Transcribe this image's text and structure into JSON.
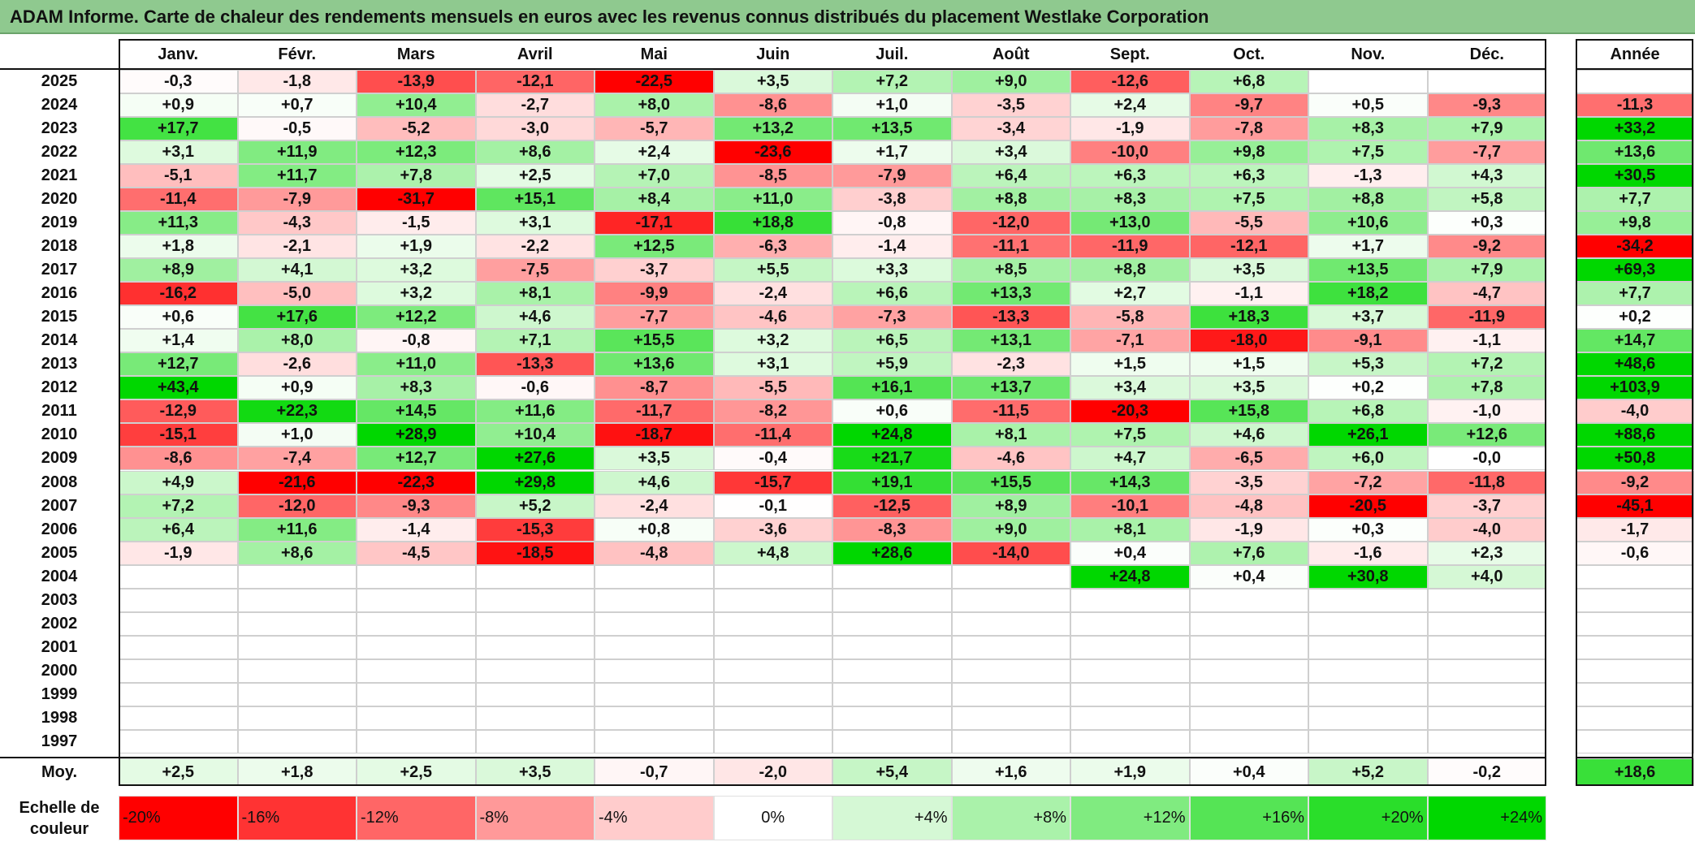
{
  "title": "ADAM Informe. Carte de chaleur des rendements mensuels en euros avec les revenus connus distribués du placement Westlake Corporation",
  "months": [
    "Janv.",
    "Févr.",
    "Mars",
    "Avril",
    "Mai",
    "Juin",
    "Juil.",
    "Août",
    "Sept.",
    "Oct.",
    "Nov.",
    "Déc."
  ],
  "annual_header": "Année",
  "average_label": "Moy.",
  "scale_label": "Echelle de couleur",
  "colors": {
    "negative": "#ff0000",
    "neutral": "#ffffff",
    "positive": "#00ff00",
    "title_bg": "#8fc98f"
  },
  "chart_data": {
    "type": "heatmap",
    "title": "ADAM Informe. Carte de chaleur des rendements mensuels en euros avec les revenus connus distribués du placement Westlake Corporation",
    "years": [
      2025,
      2024,
      2023,
      2022,
      2021,
      2020,
      2019,
      2018,
      2017,
      2016,
      2015,
      2014,
      2013,
      2012,
      2011,
      2010,
      2009,
      2008,
      2007,
      2006,
      2005,
      2004,
      2003,
      2002,
      2001,
      2000,
      1999,
      1998,
      1997
    ],
    "rows": [
      [
        "-0,3",
        "-1,8",
        "-13,9",
        "-12,1",
        "-22,5",
        "+3,5",
        "+7,2",
        "+9,0",
        "-12,6",
        "+6,8",
        "",
        ""
      ],
      [
        "+0,9",
        "+0,7",
        "+10,4",
        "-2,7",
        "+8,0",
        "-8,6",
        "+1,0",
        "-3,5",
        "+2,4",
        "-9,7",
        "+0,5",
        "-9,3"
      ],
      [
        "+17,7",
        "-0,5",
        "-5,2",
        "-3,0",
        "-5,7",
        "+13,2",
        "+13,5",
        "-3,4",
        "-1,9",
        "-7,8",
        "+8,3",
        "+7,9"
      ],
      [
        "+3,1",
        "+11,9",
        "+12,3",
        "+8,6",
        "+2,4",
        "-23,6",
        "+1,7",
        "+3,4",
        "-10,0",
        "+9,8",
        "+7,5",
        "-7,7"
      ],
      [
        "-5,1",
        "+11,7",
        "+7,8",
        "+2,5",
        "+7,0",
        "-8,5",
        "-7,9",
        "+6,4",
        "+6,3",
        "+6,3",
        "-1,3",
        "+4,3"
      ],
      [
        "-11,4",
        "-7,9",
        "-31,7",
        "+15,1",
        "+8,4",
        "+11,0",
        "-3,8",
        "+8,8",
        "+8,3",
        "+7,5",
        "+8,8",
        "+5,8"
      ],
      [
        "+11,3",
        "-4,3",
        "-1,5",
        "+3,1",
        "-17,1",
        "+18,8",
        "-0,8",
        "-12,0",
        "+13,0",
        "-5,5",
        "+10,6",
        "+0,3"
      ],
      [
        "+1,8",
        "-2,1",
        "+1,9",
        "-2,2",
        "+12,5",
        "-6,3",
        "-1,4",
        "-11,1",
        "-11,9",
        "-12,1",
        "+1,7",
        "-9,2"
      ],
      [
        "+8,9",
        "+4,1",
        "+3,2",
        "-7,5",
        "-3,7",
        "+5,5",
        "+3,3",
        "+8,5",
        "+8,8",
        "+3,5",
        "+13,5",
        "+7,9"
      ],
      [
        "-16,2",
        "-5,0",
        "+3,2",
        "+8,1",
        "-9,9",
        "-2,4",
        "+6,6",
        "+13,3",
        "+2,7",
        "-1,1",
        "+18,2",
        "-4,7"
      ],
      [
        "+0,6",
        "+17,6",
        "+12,2",
        "+4,6",
        "-7,7",
        "-4,6",
        "-7,3",
        "-13,3",
        "-5,8",
        "+18,3",
        "+3,7",
        "-11,9"
      ],
      [
        "+1,4",
        "+8,0",
        "-0,8",
        "+7,1",
        "+15,5",
        "+3,2",
        "+6,5",
        "+13,1",
        "-7,1",
        "-18,0",
        "-9,1",
        "-1,1"
      ],
      [
        "+12,7",
        "-2,6",
        "+11,0",
        "-13,3",
        "+13,6",
        "+3,1",
        "+5,9",
        "-2,3",
        "+1,5",
        "+1,5",
        "+5,3",
        "+7,2"
      ],
      [
        "+43,4",
        "+0,9",
        "+8,3",
        "-0,6",
        "-8,7",
        "-5,5",
        "+16,1",
        "+13,7",
        "+3,4",
        "+3,5",
        "+0,2",
        "+7,8"
      ],
      [
        "-12,9",
        "+22,3",
        "+14,5",
        "+11,6",
        "-11,7",
        "-8,2",
        "+0,6",
        "-11,5",
        "-20,3",
        "+15,8",
        "+6,8",
        "-1,0"
      ],
      [
        "-15,1",
        "+1,0",
        "+28,9",
        "+10,4",
        "-18,7",
        "-11,4",
        "+24,8",
        "+8,1",
        "+7,5",
        "+4,6",
        "+26,1",
        "+12,6"
      ],
      [
        "-8,6",
        "-7,4",
        "+12,7",
        "+27,6",
        "+3,5",
        "-0,4",
        "+21,7",
        "-4,6",
        "+4,7",
        "-6,5",
        "+6,0",
        "-0,0"
      ],
      [
        "+4,9",
        "-21,6",
        "-22,3",
        "+29,8",
        "+4,6",
        "-15,7",
        "+19,1",
        "+15,5",
        "+14,3",
        "-3,5",
        "-7,2",
        "-11,8"
      ],
      [
        "+7,2",
        "-12,0",
        "-9,3",
        "+5,2",
        "-2,4",
        "-0,1",
        "-12,5",
        "+8,9",
        "-10,1",
        "-4,8",
        "-20,5",
        "-3,7"
      ],
      [
        "+6,4",
        "+11,6",
        "-1,4",
        "-15,3",
        "+0,8",
        "-3,6",
        "-8,3",
        "+9,0",
        "+8,1",
        "-1,9",
        "+0,3",
        "-4,0"
      ],
      [
        "-1,9",
        "+8,6",
        "-4,5",
        "-18,5",
        "-4,8",
        "+4,8",
        "+28,6",
        "-14,0",
        "+0,4",
        "+7,6",
        "-1,6",
        "+2,3"
      ],
      [
        "",
        "",
        "",
        "",
        "",
        "",
        "",
        "",
        "+24,8",
        "+0,4",
        "+30,8",
        "+4,0"
      ],
      [
        "",
        "",
        "",
        "",
        "",
        "",
        "",
        "",
        "",
        "",
        "",
        ""
      ],
      [
        "",
        "",
        "",
        "",
        "",
        "",
        "",
        "",
        "",
        "",
        "",
        ""
      ],
      [
        "",
        "",
        "",
        "",
        "",
        "",
        "",
        "",
        "",
        "",
        "",
        ""
      ],
      [
        "",
        "",
        "",
        "",
        "",
        "",
        "",
        "",
        "",
        "",
        "",
        ""
      ],
      [
        "",
        "",
        "",
        "",
        "",
        "",
        "",
        "",
        "",
        "",
        "",
        ""
      ],
      [
        "",
        "",
        "",
        "",
        "",
        "",
        "",
        "",
        "",
        "",
        "",
        ""
      ],
      [
        "",
        "",
        "",
        "",
        "",
        "",
        "",
        "",
        "",
        "",
        "",
        ""
      ]
    ],
    "annual": [
      "",
      "-11,3",
      "+33,2",
      "+13,6",
      "+30,5",
      "+7,7",
      "+9,8",
      "-34,2",
      "+69,3",
      "+7,7",
      "+0,2",
      "+14,7",
      "+48,6",
      "+103,9",
      "-4,0",
      "+88,6",
      "+50,8",
      "-9,2",
      "-45,1",
      "-1,7",
      "-0,6",
      "",
      "",
      "",
      "",
      "",
      "",
      "",
      ""
    ],
    "averages": [
      "+2,5",
      "+1,8",
      "+2,5",
      "+3,5",
      "-0,7",
      "-2,0",
      "+5,4",
      "+1,6",
      "+1,9",
      "+0,4",
      "+5,2",
      "-0,2"
    ],
    "average_annual": "+18,6",
    "scale": [
      {
        "label": "-20%",
        "value": -20
      },
      {
        "label": "-16%",
        "value": -16
      },
      {
        "label": "-12%",
        "value": -12
      },
      {
        "label": "-8%",
        "value": -8
      },
      {
        "label": "-4%",
        "value": -4
      },
      {
        "label": "0%",
        "value": 0
      },
      {
        "label": "+4%",
        "value": 4
      },
      {
        "label": "+8%",
        "value": 8
      },
      {
        "label": "+12%",
        "value": 12
      },
      {
        "label": "+16%",
        "value": 16
      },
      {
        "label": "+20%",
        "value": 20
      },
      {
        "label": "+24%",
        "value": 24
      }
    ],
    "color_scale_range": [
      -20,
      24
    ]
  }
}
